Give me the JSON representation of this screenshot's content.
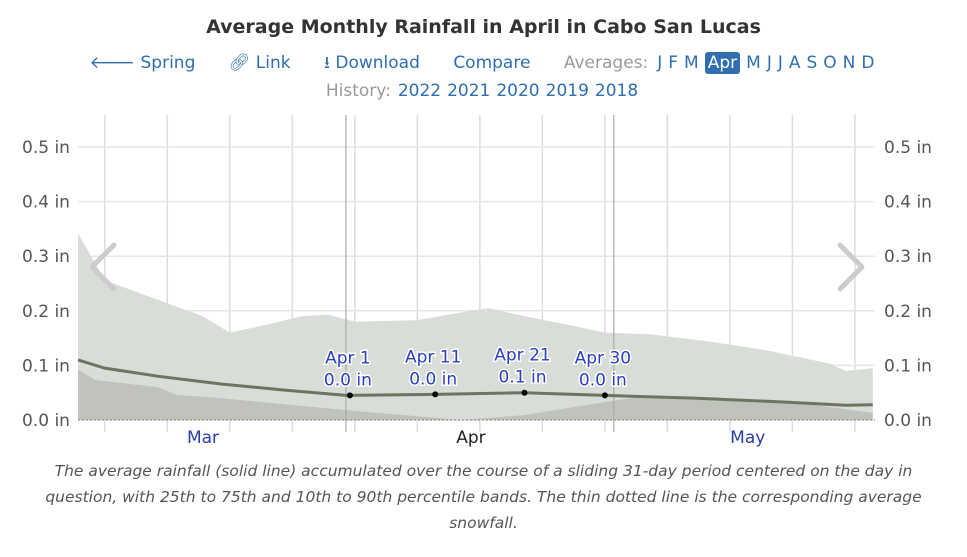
{
  "title": "Average Monthly Rainfall in April in Cabo San Lucas",
  "nav": {
    "spring": "Spring",
    "link": "Link",
    "download": "Download",
    "compare": "Compare",
    "averages_label": "Averages:",
    "months": [
      "J",
      "F",
      "M",
      "Apr",
      "M",
      "J",
      "J",
      "A",
      "S",
      "O",
      "N",
      "D"
    ],
    "selected_month": "Apr"
  },
  "history": {
    "label": "History:",
    "years": [
      "2022",
      "2021",
      "2020",
      "2019",
      "2018"
    ]
  },
  "colors": {
    "accent": "#2f6fb0",
    "band_10_90": "#d9ddd8",
    "band_low": "#bfc3bb",
    "mean_line": "#6b7560"
  },
  "chart_data": {
    "type": "area",
    "ylabel": "",
    "ylim": [
      0,
      0.55
    ],
    "yticks": [
      "0.0 in",
      "0.1 in",
      "0.2 in",
      "0.3 in",
      "0.4 in",
      "0.5 in"
    ],
    "ytick_values": [
      0,
      0.1,
      0.2,
      0.3,
      0.4,
      0.5
    ],
    "xlim": [
      "Mar 2",
      "May 30"
    ],
    "xtick_labels": [
      "Mar",
      "Apr",
      "May"
    ],
    "grid": true,
    "band_upper": {
      "x": [
        "Mar 2",
        "Mar 5",
        "Mar 9",
        "Mar 16",
        "Mar 19",
        "Mar 23",
        "Mar 27",
        "Mar 30",
        "Apr 2",
        "Apr 9",
        "Apr 15",
        "Apr 17",
        "Apr 21",
        "Apr 26",
        "Apr 30",
        "May 5",
        "May 12",
        "May 18",
        "May 25",
        "May 27",
        "May 30"
      ],
      "y": [
        0.342,
        0.256,
        0.232,
        0.19,
        0.16,
        0.174,
        0.19,
        0.193,
        0.18,
        0.183,
        0.2,
        0.205,
        0.19,
        0.174,
        0.16,
        0.157,
        0.143,
        0.128,
        0.104,
        0.09,
        0.095
      ]
    },
    "band_lower": {
      "x": [
        "Mar 2",
        "Mar 4",
        "Mar 11",
        "Mar 13",
        "Mar 18",
        "Apr 1",
        "Apr 14",
        "Apr 21",
        "Apr 30",
        "May 3",
        "May 11",
        "May 21",
        "May 30"
      ],
      "y": [
        0.092,
        0.073,
        0.06,
        0.046,
        0.04,
        0.018,
        0.0,
        0.009,
        0.033,
        0.04,
        0.04,
        0.033,
        0.013
      ]
    },
    "mean": {
      "x": [
        "Mar 2",
        "Mar 5",
        "Mar 11",
        "Mar 18",
        "Mar 25",
        "Apr 1",
        "Apr 11",
        "Apr 21",
        "Apr 30",
        "May 10",
        "May 20",
        "May 27",
        "May 30"
      ],
      "y": [
        0.11,
        0.095,
        0.08,
        0.066,
        0.055,
        0.045,
        0.047,
        0.05,
        0.045,
        0.04,
        0.033,
        0.027,
        0.028
      ]
    },
    "annotations": [
      {
        "date": "Apr 1",
        "label": "Apr 1",
        "value_label": "0.0 in",
        "y": 0.045
      },
      {
        "date": "Apr 11",
        "label": "Apr 11",
        "value_label": "0.0 in",
        "y": 0.047
      },
      {
        "date": "Apr 21",
        "label": "Apr 21",
        "value_label": "0.1 in",
        "y": 0.05
      },
      {
        "date": "Apr 30",
        "label": "Apr 30",
        "value_label": "0.0 in",
        "y": 0.045
      }
    ]
  },
  "caption": "The average rainfall (solid line) accumulated over the course of a sliding 31-day period centered on the day in question, with 25th to 75th and 10th to 90th percentile bands. The thin dotted line is the corresponding average snowfall."
}
